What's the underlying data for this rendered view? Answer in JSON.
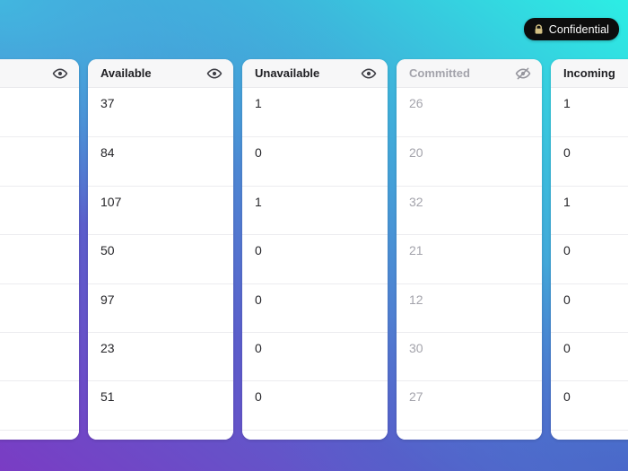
{
  "badge": {
    "label": "Confidential",
    "icon": "lock"
  },
  "table": {
    "columns": [
      {
        "id": "hidden-left",
        "label": "",
        "icon": "eye",
        "muted": false,
        "values": [
          "",
          "",
          "",
          "",
          "",
          "",
          ""
        ]
      },
      {
        "id": "available",
        "label": "Available",
        "icon": "eye",
        "muted": false,
        "values": [
          "37",
          "84",
          "107",
          "50",
          "97",
          "23",
          "51"
        ]
      },
      {
        "id": "unavailable",
        "label": "Unavailable",
        "icon": "eye",
        "muted": false,
        "values": [
          "1",
          "0",
          "1",
          "0",
          "0",
          "0",
          "0"
        ]
      },
      {
        "id": "committed",
        "label": "Committed",
        "icon": "eye-off",
        "muted": true,
        "values": [
          "26",
          "20",
          "32",
          "21",
          "12",
          "30",
          "27"
        ]
      },
      {
        "id": "incoming",
        "label": "Incoming",
        "icon": null,
        "muted": false,
        "values": [
          "1",
          "0",
          "1",
          "0",
          "0",
          "0",
          "0"
        ]
      }
    ]
  },
  "colors": {
    "gradient_top_left": "#41b9e0",
    "gradient_top_right": "#2ceee4",
    "gradient_bottom_left": "#7a3cc4",
    "gradient_bottom_right": "#4a63c8",
    "card_bg": "#ffffff",
    "header_bg": "#f7f7f8",
    "divider": "#ececef",
    "cell_text": "#26262a",
    "muted_text": "#a3a3ab",
    "badge_bg": "#0d0d0d",
    "badge_text": "#ffffff",
    "lock_icon": "#d4c183"
  }
}
